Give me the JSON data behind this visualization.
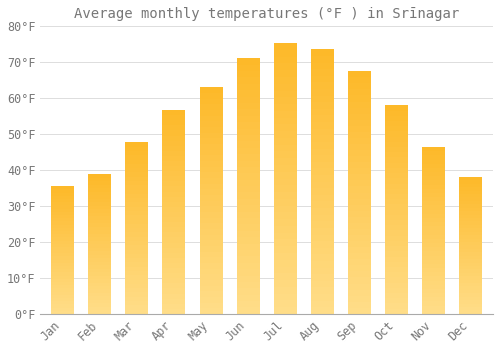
{
  "title": "Average monthly temperatures (°F ) in Srīnagar",
  "months": [
    "Jan",
    "Feb",
    "Mar",
    "Apr",
    "May",
    "Jun",
    "Jul",
    "Aug",
    "Sep",
    "Oct",
    "Nov",
    "Dec"
  ],
  "values": [
    35.5,
    38.8,
    47.7,
    56.7,
    63.0,
    71.1,
    75.3,
    73.6,
    67.5,
    58.0,
    46.4,
    38.1
  ],
  "bar_color": "#FDB827",
  "bar_color_light": "#FFDD88",
  "background_color": "#FFFFFF",
  "plot_bg_color": "#FFFFFF",
  "grid_color": "#DDDDDD",
  "text_color": "#777777",
  "axis_color": "#AAAAAA",
  "ylim": [
    0,
    80
  ],
  "ytick_step": 10,
  "title_fontsize": 10,
  "tick_fontsize": 8.5
}
